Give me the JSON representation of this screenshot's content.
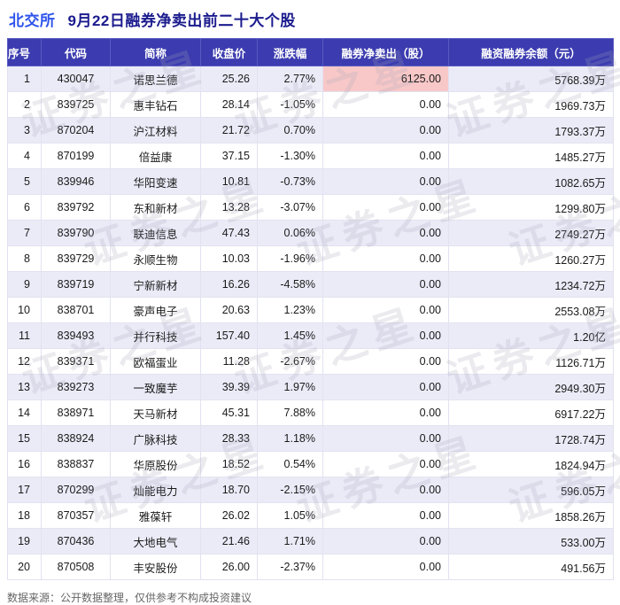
{
  "title": {
    "exchange": "北交所",
    "main": "9月22日融券净卖出前二十大个股"
  },
  "footer": "数据来源：公开数据整理，仅供参考不构成投资建议",
  "watermark": "证券之星",
  "colors": {
    "header_bg": "#3c3cb0",
    "header_text": "#ffffff",
    "row_alt_bg": "#ebebf8",
    "price_color": "#e0461c",
    "up_color": "#e0461c",
    "down_color": "#00a038",
    "highlight_bg": "#f8c8c8",
    "highlight_text": "#e03030",
    "title_exchange_color": "#2f54eb",
    "title_main_color": "#1b1b8e"
  },
  "chart_data": {
    "type": "table",
    "title": "北交所 9月22日融券净卖出前二十大个股",
    "columns": [
      "序号",
      "代码",
      "简称",
      "收盘价",
      "涨跌幅",
      "融券净卖出（股）",
      "融资融券余额（元）"
    ],
    "rows": [
      [
        "1",
        "430047",
        "诺思兰德",
        "25.26",
        "2.77%",
        "6125.00",
        "5768.39万"
      ],
      [
        "2",
        "839725",
        "惠丰钻石",
        "28.14",
        "-1.05%",
        "0.00",
        "1969.73万"
      ],
      [
        "3",
        "870204",
        "沪江材料",
        "21.72",
        "0.70%",
        "0.00",
        "1793.37万"
      ],
      [
        "4",
        "870199",
        "倍益康",
        "37.15",
        "-1.30%",
        "0.00",
        "1485.27万"
      ],
      [
        "5",
        "839946",
        "华阳变速",
        "10.81",
        "-0.73%",
        "0.00",
        "1082.65万"
      ],
      [
        "6",
        "839792",
        "东和新材",
        "13.28",
        "-3.07%",
        "0.00",
        "1299.80万"
      ],
      [
        "7",
        "839790",
        "联迪信息",
        "47.43",
        "0.06%",
        "0.00",
        "2749.27万"
      ],
      [
        "8",
        "839729",
        "永顺生物",
        "10.03",
        "-1.96%",
        "0.00",
        "1260.27万"
      ],
      [
        "9",
        "839719",
        "宁新新材",
        "16.26",
        "-4.58%",
        "0.00",
        "1234.72万"
      ],
      [
        "10",
        "838701",
        "豪声电子",
        "20.63",
        "1.23%",
        "0.00",
        "2553.08万"
      ],
      [
        "11",
        "839493",
        "并行科技",
        "157.40",
        "1.45%",
        "0.00",
        "1.20亿"
      ],
      [
        "12",
        "839371",
        "欧福蛋业",
        "11.28",
        "-2.67%",
        "0.00",
        "1126.71万"
      ],
      [
        "13",
        "839273",
        "一致魔芋",
        "39.39",
        "1.97%",
        "0.00",
        "2949.30万"
      ],
      [
        "14",
        "838971",
        "天马新材",
        "45.31",
        "7.88%",
        "0.00",
        "6917.22万"
      ],
      [
        "15",
        "838924",
        "广脉科技",
        "28.33",
        "1.18%",
        "0.00",
        "1728.74万"
      ],
      [
        "16",
        "838837",
        "华原股份",
        "18.52",
        "0.54%",
        "0.00",
        "1824.94万"
      ],
      [
        "17",
        "870299",
        "灿能电力",
        "18.70",
        "-2.15%",
        "0.00",
        "596.05万"
      ],
      [
        "18",
        "870357",
        "雅葆轩",
        "26.02",
        "1.05%",
        "0.00",
        "1858.26万"
      ],
      [
        "19",
        "870436",
        "大地电气",
        "21.46",
        "1.71%",
        "0.00",
        "533.00万"
      ],
      [
        "20",
        "870508",
        "丰安股份",
        "26.00",
        "-2.37%",
        "0.00",
        "491.56万"
      ]
    ]
  }
}
